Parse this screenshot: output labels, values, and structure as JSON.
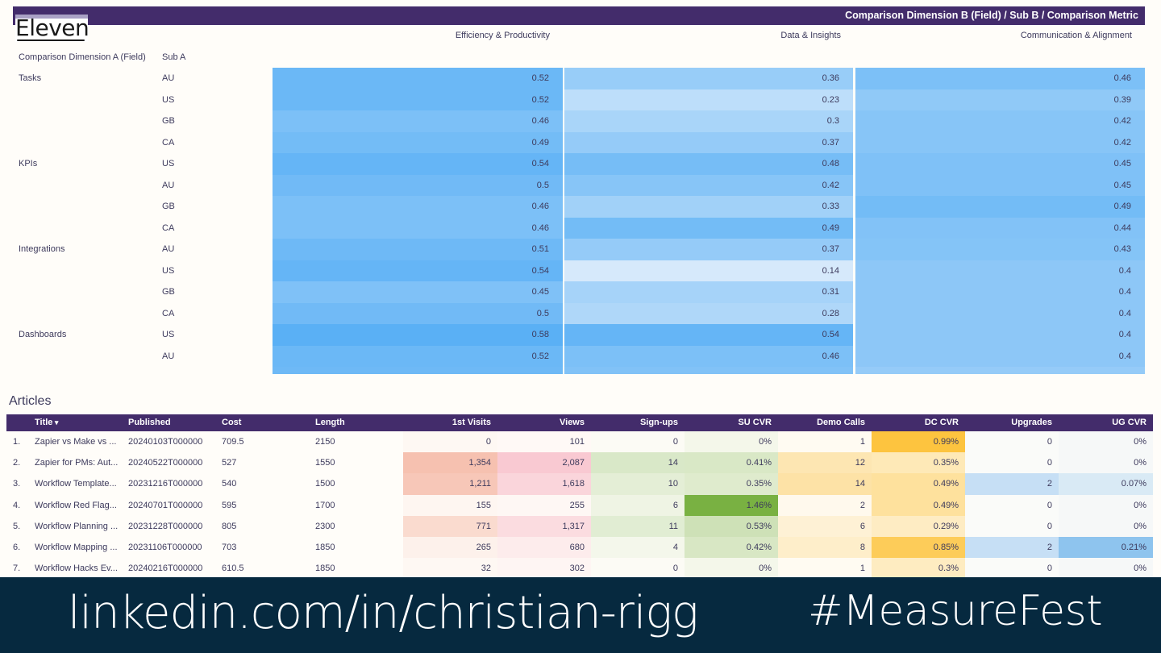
{
  "brand": {
    "logo_text": "Eleven"
  },
  "pivot": {
    "header": "Comparison Dimension B (Field) / Sub B / Comparison Metric",
    "columns": [
      "Efficiency & Productivity",
      "Data & Insights",
      "Communication & Alignment"
    ],
    "dim_a_header": "Comparison Dimension A (Field)",
    "sub_a_header": "Sub A",
    "rows": [
      {
        "dim": "Tasks",
        "sub": "AU",
        "v": [
          "0.52",
          "0.36",
          "0.46"
        ]
      },
      {
        "dim": "",
        "sub": "US",
        "v": [
          "0.52",
          "0.23",
          "0.39"
        ]
      },
      {
        "dim": "",
        "sub": "GB",
        "v": [
          "0.46",
          "0.3",
          "0.42"
        ]
      },
      {
        "dim": "",
        "sub": "CA",
        "v": [
          "0.49",
          "0.37",
          "0.42"
        ]
      },
      {
        "dim": "KPIs",
        "sub": "US",
        "v": [
          "0.54",
          "0.48",
          "0.45"
        ]
      },
      {
        "dim": "",
        "sub": "AU",
        "v": [
          "0.5",
          "0.42",
          "0.45"
        ]
      },
      {
        "dim": "",
        "sub": "GB",
        "v": [
          "0.46",
          "0.33",
          "0.49"
        ]
      },
      {
        "dim": "",
        "sub": "CA",
        "v": [
          "0.46",
          "0.49",
          "0.44"
        ]
      },
      {
        "dim": "Integrations",
        "sub": "AU",
        "v": [
          "0.51",
          "0.37",
          "0.43"
        ]
      },
      {
        "dim": "",
        "sub": "US",
        "v": [
          "0.54",
          "0.14",
          "0.4"
        ]
      },
      {
        "dim": "",
        "sub": "GB",
        "v": [
          "0.45",
          "0.31",
          "0.4"
        ]
      },
      {
        "dim": "",
        "sub": "CA",
        "v": [
          "0.5",
          "0.28",
          "0.4"
        ]
      },
      {
        "dim": "Dashboards",
        "sub": "US",
        "v": [
          "0.58",
          "0.54",
          "0.4"
        ]
      },
      {
        "dim": "",
        "sub": "AU",
        "v": [
          "0.52",
          "0.46",
          "0.4"
        ]
      }
    ]
  },
  "articles": {
    "title": "Articles",
    "headers": [
      "Title",
      "Published",
      "Cost",
      "Length",
      "1st Visits",
      "Views",
      "Sign-ups",
      "SU CVR",
      "Demo Calls",
      "DC CVR",
      "Upgrades",
      "UG CVR"
    ],
    "sort_indicator": "▾",
    "rows": [
      {
        "n": "1.",
        "title": "Zapier vs Make vs ...",
        "published": "20240103T000000",
        "cost": "709.5",
        "length": "2150",
        "visits": "0",
        "views": "101",
        "signups": "0",
        "su_cvr": "0%",
        "demo": "1",
        "dc_cvr": "0.99%",
        "upgrades": "0",
        "ug_cvr": "0%"
      },
      {
        "n": "2.",
        "title": "Zapier for PMs: Aut...",
        "published": "20240522T000000",
        "cost": "527",
        "length": "1550",
        "visits": "1,354",
        "views": "2,087",
        "signups": "14",
        "su_cvr": "0.41%",
        "demo": "12",
        "dc_cvr": "0.35%",
        "upgrades": "0",
        "ug_cvr": "0%"
      },
      {
        "n": "3.",
        "title": "Workflow Template...",
        "published": "20231216T000000",
        "cost": "540",
        "length": "1500",
        "visits": "1,211",
        "views": "1,618",
        "signups": "10",
        "su_cvr": "0.35%",
        "demo": "14",
        "dc_cvr": "0.49%",
        "upgrades": "2",
        "ug_cvr": "0.07%"
      },
      {
        "n": "4.",
        "title": "Workflow Red Flag...",
        "published": "20240701T000000",
        "cost": "595",
        "length": "1700",
        "visits": "155",
        "views": "255",
        "signups": "6",
        "su_cvr": "1.46%",
        "demo": "2",
        "dc_cvr": "0.49%",
        "upgrades": "0",
        "ug_cvr": "0%"
      },
      {
        "n": "5.",
        "title": "Workflow Planning ...",
        "published": "20231228T000000",
        "cost": "805",
        "length": "2300",
        "visits": "771",
        "views": "1,317",
        "signups": "11",
        "su_cvr": "0.53%",
        "demo": "6",
        "dc_cvr": "0.29%",
        "upgrades": "0",
        "ug_cvr": "0%"
      },
      {
        "n": "6.",
        "title": "Workflow Mapping ...",
        "published": "20231106T000000",
        "cost": "703",
        "length": "1850",
        "visits": "265",
        "views": "680",
        "signups": "4",
        "su_cvr": "0.42%",
        "demo": "8",
        "dc_cvr": "0.85%",
        "upgrades": "2",
        "ug_cvr": "0.21%"
      },
      {
        "n": "7.",
        "title": "Workflow Hacks Ev...",
        "published": "20240216T000000",
        "cost": "610.5",
        "length": "1850",
        "visits": "32",
        "views": "302",
        "signups": "0",
        "su_cvr": "0%",
        "demo": "1",
        "dc_cvr": "0.3%",
        "upgrades": "0",
        "ug_cvr": "0%"
      }
    ]
  },
  "colors": {
    "header_bg": "#432c6b",
    "footer_bg": "#06293f",
    "blue_scale_low": "#dcecfb",
    "blue_scale_high": "#5ab0f5",
    "visits_scale": "#f6c1b0",
    "views_scale": "#f9c9d2",
    "signups_scale": "#d9e8c8",
    "su_cvr_scale": "#79b142",
    "demo_scale": "#fde2a6",
    "dc_cvr_scale": "#fdc43f",
    "upgrades_scale": "#c6dff5",
    "ug_cvr_scale": "#8ec4ee"
  },
  "footer": {
    "link": "linkedin.com/in/christian-rigg",
    "hashtag": "#MeasureFest"
  }
}
